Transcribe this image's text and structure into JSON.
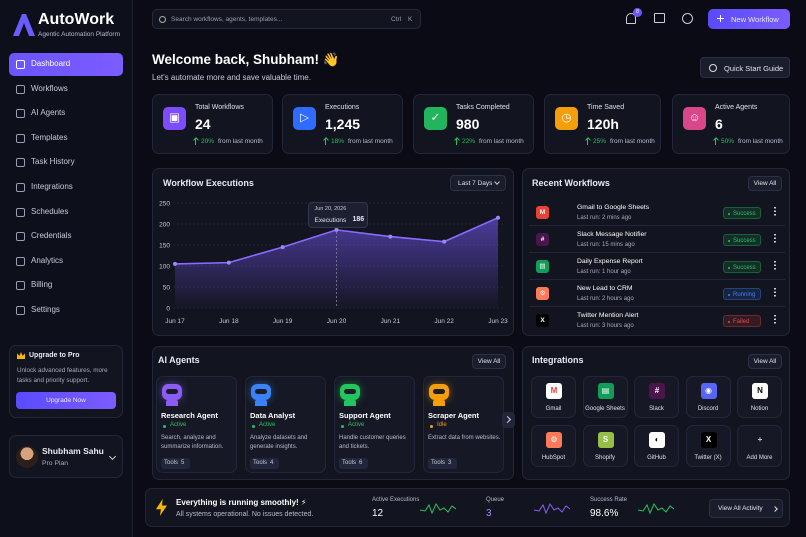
{
  "brand": {
    "name": "AutoWork",
    "tagline": "Agentic Automation Platform"
  },
  "search": {
    "placeholder": "Search workflows, agents, templates...",
    "shortcut": [
      "Ctrl",
      "K"
    ]
  },
  "header": {
    "notifications": 8,
    "new_workflow": "New Workflow"
  },
  "nav": [
    "Dashboard",
    "Workflows",
    "AI Agents",
    "Templates",
    "Task History",
    "Integrations",
    "Schedules",
    "Credentials",
    "Analytics",
    "Billing",
    "Settings"
  ],
  "upgrade": {
    "title": "Upgrade to Pro",
    "text": "Unlock advanced features, more tasks and priority support.",
    "button": "Upgrade Now"
  },
  "user": {
    "name": "Shubham Sahu",
    "plan": "Pro Plan"
  },
  "welcome": {
    "title": "Welcome back, Shubham! 👋",
    "subtitle": "Let's automate more and save valuable time.",
    "button": "Quick Start Guide"
  },
  "stats": [
    {
      "label": "Total Workflows",
      "value": 24,
      "change": "20%",
      "note": "from last month"
    },
    {
      "label": "Executions",
      "value": "1,245",
      "change": "18%",
      "note": "from last month"
    },
    {
      "label": "Tasks Completed",
      "value": 980,
      "change": "22%",
      "note": "from last month"
    },
    {
      "label": "Time Saved",
      "value": "120h",
      "change": "25%",
      "note": "from last month"
    },
    {
      "label": "Active Agents",
      "value": 6,
      "change": "50%",
      "note": "from last month"
    }
  ],
  "workflow_executions": {
    "type": "line",
    "title": "Workflow Executions",
    "range": "Last 7 Days",
    "categories": [
      "Jun 17",
      "Jun 18",
      "Jun 19",
      "Jun 20",
      "Jun 21",
      "Jun 22",
      "Jun 23"
    ],
    "values": [
      105,
      108,
      145,
      186,
      170,
      158,
      215
    ],
    "color": "#7c5cff",
    "ylim": [
      0,
      250
    ],
    "yticks": [
      0,
      50,
      100,
      150,
      200,
      250
    ],
    "grid": true,
    "tooltip": {
      "date": "Jun 20, 2026",
      "label": "Executions"
    }
  },
  "recent_workflows": {
    "title": "Recent Workflows",
    "view_all": "View All",
    "items": [
      {
        "name": "Gmail to Google Sheets",
        "last_run": "Last run: 2 mins ago",
        "status": "Success"
      },
      {
        "name": "Slack Message Notifier",
        "last_run": "Last run: 15 mins ago",
        "status": "Success"
      },
      {
        "name": "Daily Expense Report",
        "last_run": "Last run: 1 hour ago",
        "status": "Success"
      },
      {
        "name": "New Lead to CRM",
        "last_run": "Last run: 2 hours ago",
        "status": "Running"
      },
      {
        "name": "Twitter Mention Alert",
        "last_run": "Last run: 3 hours ago",
        "status": "Failed"
      }
    ]
  },
  "ai_agents": {
    "title": "AI Agents",
    "view_all": "View All",
    "tools_label": "Tools",
    "items": [
      {
        "name": "Research Agent",
        "status": "Active",
        "description": "Search, analyze and summarize information.",
        "tools": 5
      },
      {
        "name": "Data Analyst",
        "status": "Active",
        "description": "Analyze datasets and generate insights.",
        "tools": 4
      },
      {
        "name": "Support Agent",
        "status": "Active",
        "description": "Handle customer queries and tickets.",
        "tools": 6
      },
      {
        "name": "Scraper Agent",
        "status": "Idle",
        "description": "Extract data from websites.",
        "tools": 3
      }
    ]
  },
  "integrations": {
    "title": "Integrations",
    "view_all": "View All",
    "items": [
      "Gmail",
      "Google Sheets",
      "Slack",
      "Discord",
      "Notion",
      "HubSpot",
      "Shopify",
      "GitHub",
      "Twitter (X)",
      "Add More"
    ]
  },
  "status_bar": {
    "title": "Everything is running smoothly! ⚡",
    "subtitle": "All systems operational. No issues detected.",
    "metrics": [
      {
        "label": "Active Executions",
        "value": 12
      },
      {
        "label": "Queue",
        "value": 3
      },
      {
        "label": "Success Rate",
        "value": "98.6%"
      }
    ],
    "button": "View All Activity"
  }
}
